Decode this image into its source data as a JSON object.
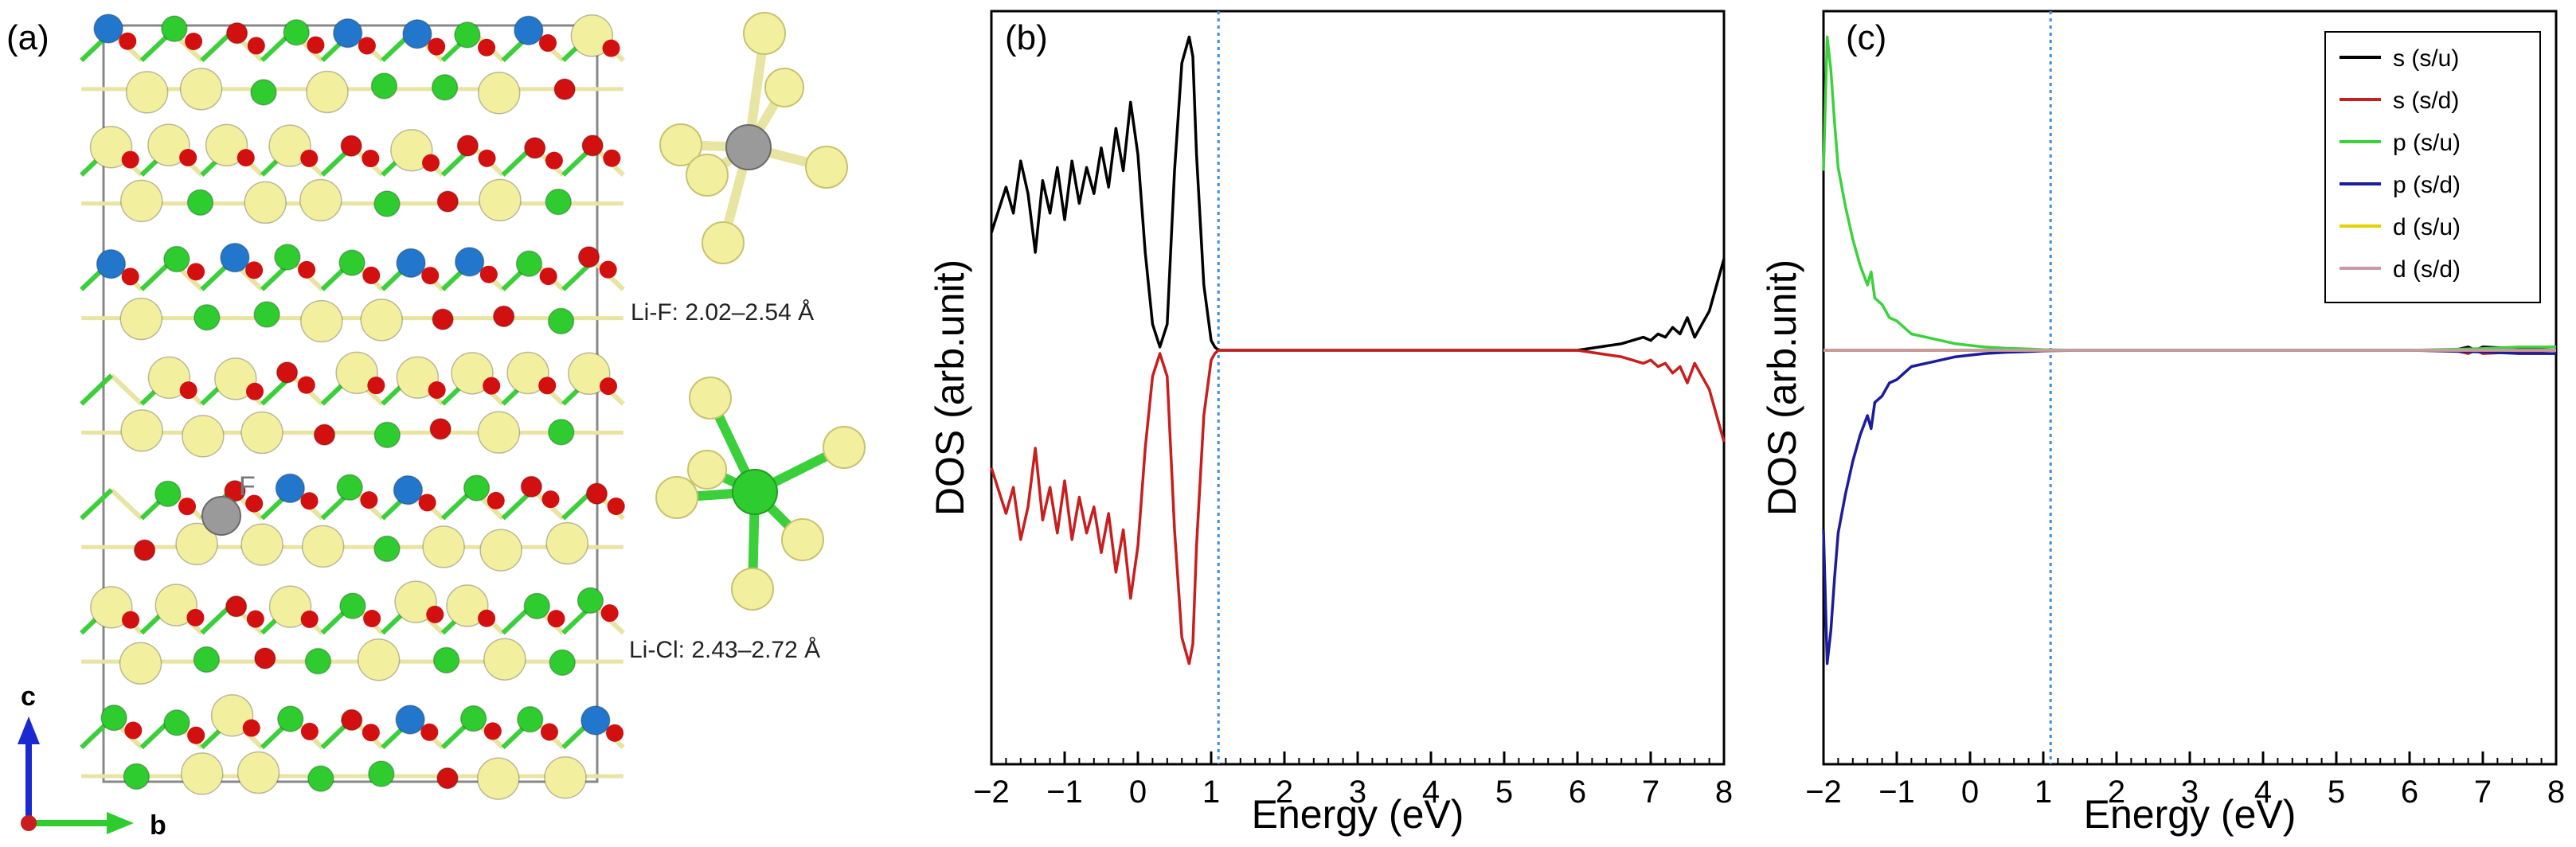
{
  "panels": {
    "a": {
      "label": "(a)",
      "atom_label": "F",
      "bond_f": "Li-F: 2.02–2.54 Å",
      "bond_cl": "Li-Cl: 2.43–2.72 Å",
      "axis_c": "c",
      "axis_b": "b"
    }
  },
  "colors": {
    "li": "#f2ef9e",
    "o": "#d21010",
    "cl": "#2ecc2e",
    "f": "#9a9a9a",
    "metal": "#2277cc",
    "bond_li": "#e8e4a2",
    "bond_cl": "#3ccf3c",
    "fermi": "#3a8ed8"
  },
  "chart_data": [
    {
      "type": "line",
      "panel_label": "(b)",
      "xlabel": "Energy (eV)",
      "ylabel": "DOS (arb.unit)",
      "xlim": [
        -2,
        8
      ],
      "ylim": [
        -1,
        1
      ],
      "xticks": [
        -2,
        -1,
        0,
        1,
        2,
        3,
        4,
        5,
        6,
        7,
        8
      ],
      "fermi_level": 1.1,
      "series": [
        {
          "name": "s (s/u)",
          "color": "#000000",
          "x": [
            -2,
            -1.8,
            -1.7,
            -1.6,
            -1.5,
            -1.4,
            -1.3,
            -1.2,
            -1.1,
            -1.0,
            -0.9,
            -0.8,
            -0.7,
            -0.6,
            -0.5,
            -0.4,
            -0.3,
            -0.2,
            -0.1,
            0.0,
            0.1,
            0.2,
            0.3,
            0.4,
            0.5,
            0.6,
            0.7,
            0.75,
            0.8,
            0.9,
            1.0,
            1.05,
            1.1,
            2,
            3,
            4,
            5,
            6,
            6.3,
            6.6,
            6.9,
            7.0,
            7.1,
            7.2,
            7.3,
            7.4,
            7.5,
            7.6,
            7.7,
            7.8,
            7.9,
            8.0
          ],
          "y": [
            0.36,
            0.5,
            0.42,
            0.58,
            0.48,
            0.3,
            0.52,
            0.42,
            0.56,
            0.4,
            0.58,
            0.45,
            0.56,
            0.48,
            0.62,
            0.5,
            0.68,
            0.55,
            0.76,
            0.6,
            0.3,
            0.08,
            0.01,
            0.08,
            0.55,
            0.88,
            0.96,
            0.9,
            0.6,
            0.2,
            0.03,
            0.01,
            0.0,
            0.0,
            0.0,
            0.0,
            0.0,
            0.0,
            0.01,
            0.02,
            0.04,
            0.03,
            0.05,
            0.04,
            0.07,
            0.05,
            0.1,
            0.04,
            0.08,
            0.12,
            0.2,
            0.28
          ]
        },
        {
          "name": "s (s/d)",
          "color": "#c81e1e",
          "x": [
            -2,
            -1.8,
            -1.7,
            -1.6,
            -1.5,
            -1.4,
            -1.3,
            -1.2,
            -1.1,
            -1.0,
            -0.9,
            -0.8,
            -0.7,
            -0.6,
            -0.5,
            -0.4,
            -0.3,
            -0.2,
            -0.1,
            0.0,
            0.1,
            0.2,
            0.3,
            0.4,
            0.5,
            0.6,
            0.7,
            0.75,
            0.8,
            0.9,
            1.0,
            1.05,
            1.1,
            2,
            3,
            4,
            5,
            6,
            6.3,
            6.6,
            6.9,
            7.0,
            7.1,
            7.2,
            7.3,
            7.4,
            7.5,
            7.6,
            7.7,
            7.8,
            7.9,
            8.0
          ],
          "y": [
            -0.36,
            -0.5,
            -0.42,
            -0.58,
            -0.48,
            -0.3,
            -0.52,
            -0.42,
            -0.56,
            -0.4,
            -0.58,
            -0.45,
            -0.56,
            -0.48,
            -0.62,
            -0.5,
            -0.68,
            -0.55,
            -0.76,
            -0.6,
            -0.3,
            -0.08,
            -0.01,
            -0.08,
            -0.55,
            -0.88,
            -0.96,
            -0.9,
            -0.6,
            -0.2,
            -0.03,
            -0.01,
            0.0,
            0.0,
            0.0,
            0.0,
            0.0,
            0.0,
            -0.01,
            -0.02,
            -0.04,
            -0.03,
            -0.05,
            -0.04,
            -0.07,
            -0.05,
            -0.1,
            -0.04,
            -0.08,
            -0.12,
            -0.2,
            -0.28
          ]
        }
      ]
    },
    {
      "type": "line",
      "panel_label": "(c)",
      "xlabel": "Energy (eV)",
      "ylabel": "DOS (arb.unit)",
      "xlim": [
        -2,
        8
      ],
      "ylim": [
        -1,
        1
      ],
      "xticks": [
        -2,
        -1,
        0,
        1,
        2,
        3,
        4,
        5,
        6,
        7,
        8
      ],
      "fermi_level": 1.1,
      "legend_position": "top-right",
      "series": [
        {
          "name": "s (s/u)",
          "color": "#000000",
          "x": [
            -2,
            6.6,
            6.8,
            6.9,
            7.0,
            8
          ],
          "y": [
            0,
            0,
            0.01,
            0.0,
            0.01,
            0
          ]
        },
        {
          "name": "s (s/d)",
          "color": "#c81e1e",
          "x": [
            -2,
            6.6,
            6.8,
            6.9,
            7.0,
            8
          ],
          "y": [
            0,
            0,
            -0.01,
            0.0,
            -0.01,
            0
          ]
        },
        {
          "name": "p (s/u)",
          "color": "#3cd23c",
          "x": [
            -2,
            -1.95,
            -1.9,
            -1.85,
            -1.8,
            -1.7,
            -1.6,
            -1.5,
            -1.4,
            -1.35,
            -1.3,
            -1.2,
            -1.1,
            -1.0,
            -0.9,
            -0.8,
            -0.6,
            -0.4,
            -0.2,
            0.0,
            0.2,
            0.5,
            0.8,
            1.0,
            1.5,
            2,
            3,
            4,
            5,
            6,
            7,
            7.5,
            8
          ],
          "y": [
            0.55,
            0.96,
            0.86,
            0.7,
            0.56,
            0.44,
            0.34,
            0.26,
            0.2,
            0.24,
            0.16,
            0.14,
            0.1,
            0.09,
            0.07,
            0.05,
            0.04,
            0.03,
            0.02,
            0.015,
            0.01,
            0.006,
            0.004,
            0.002,
            0.0,
            0.0,
            0.0,
            0.0,
            0.0,
            0.0,
            0.005,
            0.01,
            0.01
          ]
        },
        {
          "name": "p (s/d)",
          "color": "#1c1c9c",
          "x": [
            -2,
            -1.95,
            -1.9,
            -1.85,
            -1.8,
            -1.7,
            -1.6,
            -1.5,
            -1.4,
            -1.35,
            -1.3,
            -1.2,
            -1.1,
            -1.0,
            -0.9,
            -0.8,
            -0.6,
            -0.4,
            -0.2,
            0.0,
            0.2,
            0.5,
            0.8,
            1.0,
            1.5,
            2,
            3,
            4,
            5,
            6,
            7,
            7.5,
            8
          ],
          "y": [
            -0.55,
            -0.96,
            -0.86,
            -0.7,
            -0.56,
            -0.44,
            -0.34,
            -0.26,
            -0.2,
            -0.24,
            -0.16,
            -0.14,
            -0.1,
            -0.09,
            -0.07,
            -0.05,
            -0.04,
            -0.03,
            -0.02,
            -0.015,
            -0.01,
            -0.006,
            -0.004,
            -0.002,
            0.0,
            0.0,
            0.0,
            0.0,
            0.0,
            0.0,
            -0.005,
            -0.01,
            -0.01
          ]
        },
        {
          "name": "d (s/u)",
          "color": "#e6d200",
          "x": [
            -2,
            8
          ],
          "y": [
            0,
            0
          ]
        },
        {
          "name": "d (s/d)",
          "color": "#c89aa8",
          "x": [
            -2,
            8
          ],
          "y": [
            0,
            0
          ]
        }
      ]
    }
  ]
}
